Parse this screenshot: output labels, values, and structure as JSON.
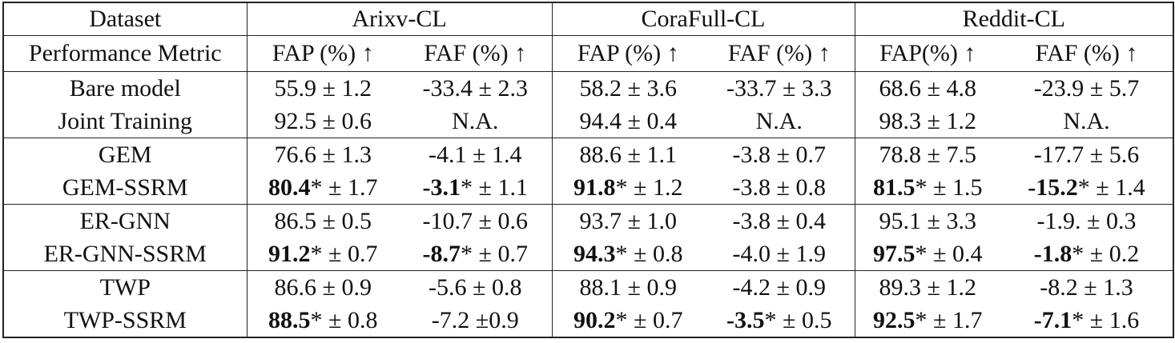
{
  "table": {
    "header": {
      "dataset_label": "Dataset",
      "datasets": [
        "Arixv-CL",
        "CoraFull-CL",
        "Reddit-CL"
      ],
      "metric_label": "Performance Metric",
      "metrics": [
        "FAP (%) ↑",
        "FAF (%) ↑",
        "FAP (%) ↑",
        "FAF (%) ↑",
        "FAP(%) ↑",
        "FAF (%) ↑"
      ]
    },
    "rows": [
      {
        "name": "Bare model",
        "cells": [
          {
            "v": "55.9",
            "s": "",
            "e": " ± 1.2",
            "bold": false
          },
          {
            "v": "-33.4",
            "s": "",
            "e": " ± 2.3",
            "bold": false
          },
          {
            "v": "58.2",
            "s": "",
            "e": " ± 3.6",
            "bold": false
          },
          {
            "v": "-33.7",
            "s": "",
            "e": " ± 3.3",
            "bold": false
          },
          {
            "v": "68.6",
            "s": "",
            "e": " ± 4.8",
            "bold": false
          },
          {
            "v": "-23.9",
            "s": "",
            "e": " ± 5.7",
            "bold": false
          }
        ]
      },
      {
        "name": "Joint Training",
        "cells": [
          {
            "v": "92.5",
            "s": "",
            "e": " ± 0.6",
            "bold": false
          },
          {
            "v": "N.A.",
            "s": "",
            "e": "",
            "bold": false
          },
          {
            "v": "94.4",
            "s": "",
            "e": " ± 0.4",
            "bold": false
          },
          {
            "v": "N.A.",
            "s": "",
            "e": "",
            "bold": false
          },
          {
            "v": "98.3",
            "s": "",
            "e": " ± 1.2",
            "bold": false
          },
          {
            "v": "N.A.",
            "s": "",
            "e": "",
            "bold": false
          }
        ]
      },
      {
        "name": "GEM",
        "cells": [
          {
            "v": "76.6",
            "s": "",
            "e": " ± 1.3",
            "bold": false
          },
          {
            "v": "-4.1",
            "s": "",
            "e": " ± 1.4",
            "bold": false
          },
          {
            "v": "88.6",
            "s": "",
            "e": " ± 1.1",
            "bold": false
          },
          {
            "v": "-3.8",
            "s": "",
            "e": " ± 0.7",
            "bold": false
          },
          {
            "v": "78.8",
            "s": "",
            "e": " ± 7.5",
            "bold": false
          },
          {
            "v": "-17.7",
            "s": "",
            "e": " ± 5.6",
            "bold": false
          }
        ]
      },
      {
        "name": "GEM-SSRM",
        "cells": [
          {
            "v": "80.4",
            "s": "*",
            "e": " ± 1.7",
            "bold": true
          },
          {
            "v": "-3.1",
            "s": "*",
            "e": " ± 1.1",
            "bold": true
          },
          {
            "v": "91.8",
            "s": "*",
            "e": " ± 1.2",
            "bold": true
          },
          {
            "v": "-3.8",
            "s": "",
            "e": " ± 0.8",
            "bold": false
          },
          {
            "v": "81.5",
            "s": "*",
            "e": " ± 1.5",
            "bold": true
          },
          {
            "v": "-15.2",
            "s": "*",
            "e": " ± 1.4",
            "bold": true
          }
        ]
      },
      {
        "name": "ER-GNN",
        "cells": [
          {
            "v": "86.5",
            "s": "",
            "e": " ± 0.5",
            "bold": false
          },
          {
            "v": "-10.7",
            "s": "",
            "e": " ± 0.6",
            "bold": false
          },
          {
            "v": "93.7",
            "s": "",
            "e": " ± 1.0",
            "bold": false
          },
          {
            "v": "-3.8",
            "s": "",
            "e": " ± 0.4",
            "bold": false
          },
          {
            "v": "95.1",
            "s": "",
            "e": " ± 3.3",
            "bold": false
          },
          {
            "v": "-1.9.",
            "s": "",
            "e": " ± 0.3",
            "bold": false
          }
        ]
      },
      {
        "name": "ER-GNN-SSRM",
        "cells": [
          {
            "v": "91.2",
            "s": "*",
            "e": " ± 0.7",
            "bold": true
          },
          {
            "v": "-8.7",
            "s": "*",
            "e": " ± 0.7",
            "bold": true
          },
          {
            "v": "94.3",
            "s": "*",
            "e": " ± 0.8",
            "bold": true
          },
          {
            "v": "-4.0",
            "s": "",
            "e": " ± 1.9",
            "bold": false
          },
          {
            "v": "97.5",
            "s": "*",
            "e": " ± 0.4",
            "bold": true
          },
          {
            "v": "-1.8",
            "s": "*",
            "e": " ± 0.2",
            "bold": true
          }
        ]
      },
      {
        "name": "TWP",
        "cells": [
          {
            "v": "86.6",
            "s": "",
            "e": " ± 0.9",
            "bold": false
          },
          {
            "v": "-5.6",
            "s": "",
            "e": " ± 0.8",
            "bold": false
          },
          {
            "v": "88.1",
            "s": "",
            "e": " ± 0.9",
            "bold": false
          },
          {
            "v": "-4.2",
            "s": "",
            "e": " ± 0.9",
            "bold": false
          },
          {
            "v": "89.3",
            "s": "",
            "e": " ± 1.2",
            "bold": false
          },
          {
            "v": "-8.2",
            "s": "",
            "e": " ± 1.3",
            "bold": false
          }
        ]
      },
      {
        "name": "TWP-SSRM",
        "cells": [
          {
            "v": "88.5",
            "s": "*",
            "e": " ± 0.8",
            "bold": true
          },
          {
            "v": "-7.2",
            "s": "",
            "e": " ±0.9",
            "bold": false
          },
          {
            "v": "90.2",
            "s": "*",
            "e": " ± 0.7",
            "bold": true
          },
          {
            "v": "-3.5",
            "s": "*",
            "e": " ± 0.5",
            "bold": true
          },
          {
            "v": "92.5",
            "s": "*",
            "e": " ± 1.7",
            "bold": true
          },
          {
            "v": "-7.1",
            "s": "*",
            "e": " ± 1.6",
            "bold": true
          }
        ]
      }
    ]
  }
}
